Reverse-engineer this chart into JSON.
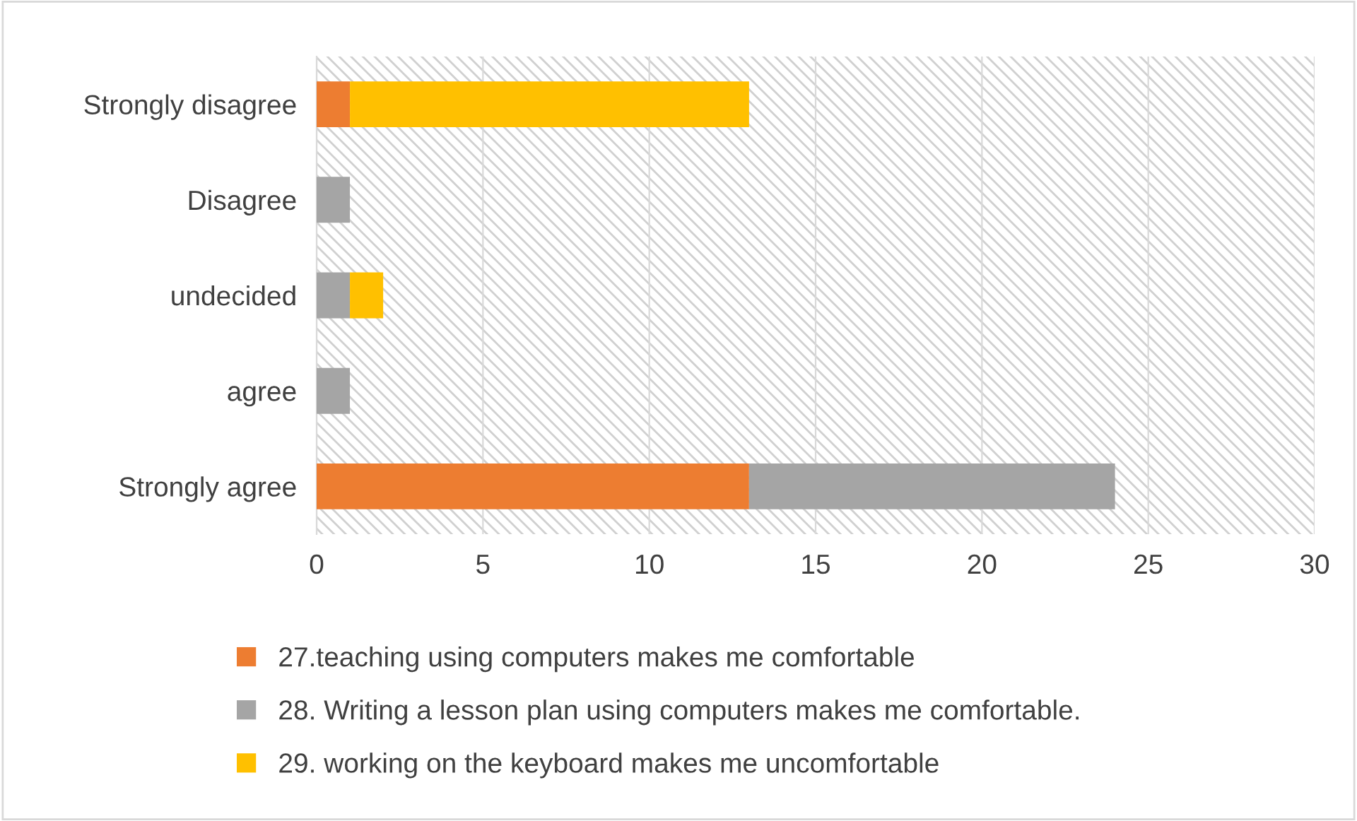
{
  "chart_data": {
    "type": "bar",
    "orientation": "horizontal",
    "stacked": true,
    "categories": [
      "Strongly disagree",
      "Disagree",
      "undecided",
      "agree",
      "Strongly agree"
    ],
    "series": [
      {
        "name": "27.teaching using computers makes me comfortable",
        "color": "#ed7d31",
        "values": [
          1,
          0,
          0,
          0,
          13
        ]
      },
      {
        "name": "28. Writing a lesson plan using computers makes me comfortable.",
        "color": "#a5a5a5",
        "values": [
          0,
          1,
          1,
          1,
          11
        ]
      },
      {
        "name": "29. working on the keyboard makes me uncomfortable",
        "color": "#ffc000",
        "values": [
          12,
          0,
          1,
          0,
          0
        ]
      }
    ],
    "xlim": [
      0,
      30
    ],
    "xticks": [
      0,
      5,
      10,
      15,
      20,
      25,
      30
    ],
    "grid": "x",
    "legend": "bottom"
  }
}
